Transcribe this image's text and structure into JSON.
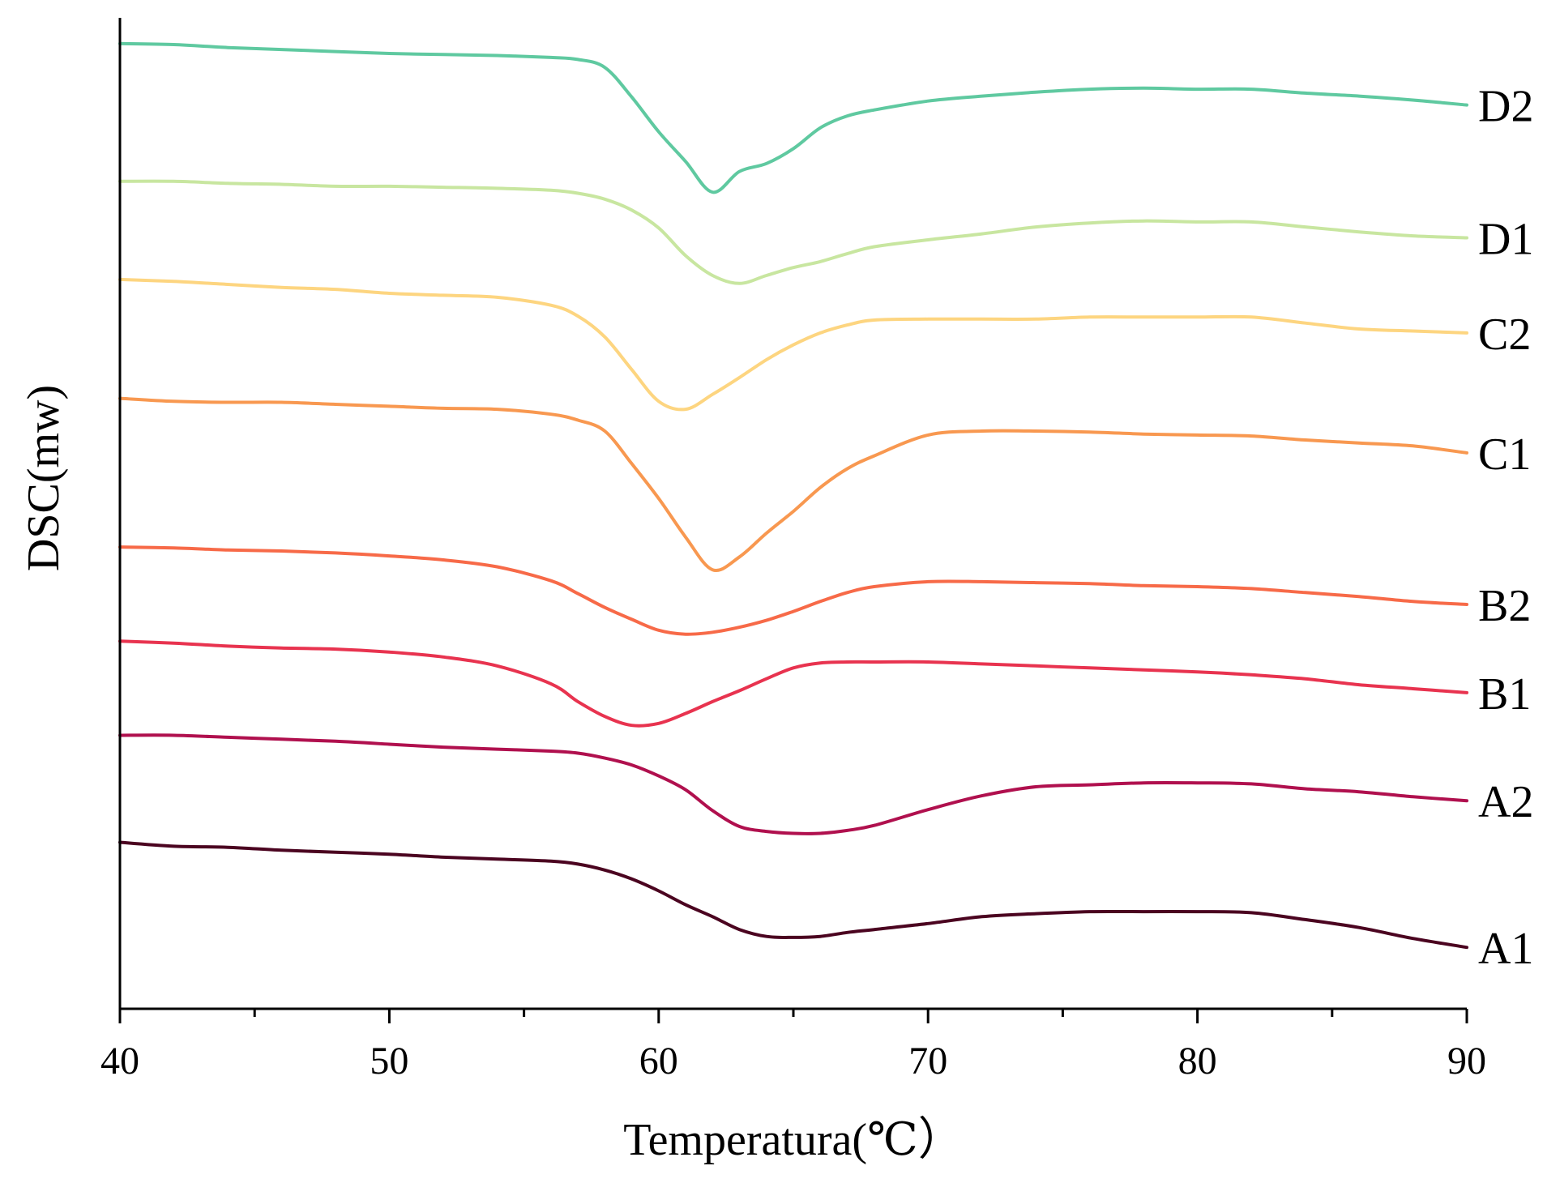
{
  "chart_data": {
    "type": "line",
    "title": "",
    "xlabel": "Temperatura(℃）",
    "ylabel": "DSC(mw)",
    "xlim": [
      40,
      90
    ],
    "ylim": [
      0,
      100
    ],
    "xticks": [
      40,
      50,
      60,
      70,
      80,
      90
    ],
    "xtick_labels": [
      "40",
      "50",
      "60",
      "70",
      "80",
      "90"
    ],
    "grid": false,
    "legend": "inline labels at right end of each curve",
    "x": [
      40,
      42,
      44,
      46,
      48,
      50,
      52,
      54,
      56,
      57,
      58,
      59,
      60,
      61,
      62,
      63,
      64,
      65,
      66,
      67,
      68,
      70,
      72,
      74,
      76,
      78,
      80,
      82,
      84,
      86,
      88,
      90
    ],
    "series": [
      {
        "name": "D2",
        "color": "#5fc9a0",
        "values": [
          97.4,
          97.3,
          97.0,
          96.8,
          96.6,
          96.4,
          96.3,
          96.2,
          96.0,
          95.8,
          95.0,
          92.0,
          88.5,
          85.5,
          82.4,
          84.5,
          85.3,
          86.8,
          88.9,
          90.1,
          90.7,
          91.6,
          92.1,
          92.5,
          92.8,
          92.9,
          92.8,
          92.8,
          92.4,
          92.1,
          91.7,
          91.2
        ]
      },
      {
        "name": "D1",
        "color": "#c8e6a0",
        "values": [
          83.5,
          83.5,
          83.3,
          83.2,
          83.0,
          83.0,
          82.9,
          82.8,
          82.6,
          82.3,
          81.7,
          80.6,
          78.8,
          76.0,
          74.0,
          73.2,
          74.0,
          74.8,
          75.4,
          76.2,
          76.9,
          77.6,
          78.2,
          78.9,
          79.3,
          79.5,
          79.4,
          79.4,
          78.9,
          78.4,
          78.0,
          77.8
        ]
      },
      {
        "name": "C2",
        "color": "#fdd580",
        "values": [
          73.6,
          73.4,
          73.1,
          72.8,
          72.6,
          72.2,
          72.0,
          71.8,
          71.0,
          69.9,
          67.8,
          64.5,
          61.3,
          60.5,
          62.0,
          63.7,
          65.5,
          67.0,
          68.2,
          69.0,
          69.5,
          69.6,
          69.6,
          69.6,
          69.8,
          69.8,
          69.8,
          69.8,
          69.2,
          68.6,
          68.4,
          68.2
        ]
      },
      {
        "name": "C1",
        "color": "#f89850",
        "values": [
          61.6,
          61.3,
          61.2,
          61.2,
          61.0,
          60.8,
          60.6,
          60.5,
          60.0,
          59.4,
          58.3,
          55.0,
          51.5,
          47.6,
          44.3,
          45.6,
          48.0,
          50.2,
          52.6,
          54.5,
          55.8,
          57.9,
          58.3,
          58.3,
          58.2,
          58.0,
          57.9,
          57.8,
          57.4,
          57.1,
          56.8,
          56.1
        ]
      },
      {
        "name": "B2",
        "color": "#f76a48",
        "values": [
          46.6,
          46.5,
          46.3,
          46.2,
          46.0,
          45.7,
          45.3,
          44.6,
          43.2,
          41.9,
          40.5,
          39.3,
          38.2,
          37.8,
          38.0,
          38.5,
          39.2,
          40.1,
          41.1,
          42.0,
          42.6,
          43.1,
          43.1,
          43.0,
          42.9,
          42.7,
          42.6,
          42.4,
          42.0,
          41.6,
          41.1,
          40.8
        ]
      },
      {
        "name": "B1",
        "color": "#e8334f",
        "values": [
          37.1,
          36.9,
          36.6,
          36.4,
          36.3,
          36.0,
          35.5,
          34.6,
          32.8,
          31.0,
          29.5,
          28.6,
          28.8,
          29.8,
          31.0,
          32.1,
          33.3,
          34.4,
          34.9,
          35.0,
          35.0,
          35.0,
          34.8,
          34.6,
          34.4,
          34.2,
          34.0,
          33.7,
          33.3,
          32.7,
          32.3,
          31.9
        ]
      },
      {
        "name": "A2",
        "color": "#b0104e",
        "values": [
          27.6,
          27.6,
          27.4,
          27.2,
          27.0,
          26.7,
          26.4,
          26.2,
          26.0,
          25.8,
          25.3,
          24.6,
          23.5,
          22.1,
          20.0,
          18.4,
          17.9,
          17.7,
          17.7,
          18.0,
          18.5,
          20.1,
          21.5,
          22.4,
          22.6,
          22.8,
          22.8,
          22.7,
          22.2,
          21.9,
          21.4,
          21.0
        ]
      },
      {
        "name": "A1",
        "color": "#4b0420",
        "values": [
          16.8,
          16.4,
          16.3,
          16.0,
          15.8,
          15.6,
          15.3,
          15.1,
          14.9,
          14.6,
          14.0,
          13.1,
          11.9,
          10.5,
          9.3,
          8.0,
          7.3,
          7.2,
          7.3,
          7.7,
          8.0,
          8.6,
          9.3,
          9.6,
          9.8,
          9.8,
          9.8,
          9.7,
          9.0,
          8.2,
          7.1,
          6.2
        ]
      }
    ]
  }
}
